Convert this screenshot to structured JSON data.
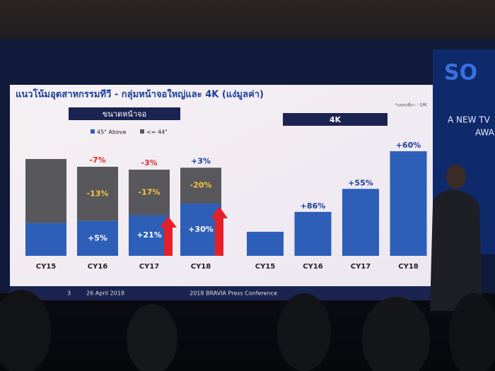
{
  "slide": {
    "title": "แนวโน้มอุตสาหกรรมทีวี - กลุ่มหน้าจอใหญ่และ 4K (แง่มูลค่า)",
    "source": "*แหล่งที่มา : GfK",
    "left_header": "ขนาดหน้าจอ",
    "right_header": "4K",
    "page": "3",
    "date": "26 April 2018",
    "event": "2018 BRAVIA Press Conference",
    "logo": "SO",
    "screen_text": [
      "A NEW TV",
      "AWA"
    ]
  },
  "chart_data": [
    {
      "type": "stacked_bar",
      "categories": [
        "CY15",
        "CY16",
        "CY17",
        "CY18"
      ],
      "series": [
        {
          "name": "45\" Above",
          "color": "#2d5fb8",
          "values": [
            34,
            36,
            42,
            54
          ],
          "label_color": "#ffffff",
          "labels": [
            null,
            {
              "value": 5,
              "label": "+5%"
            },
            {
              "value": 21,
              "label": "+21%"
            },
            {
              "value": 30,
              "label": "+30%"
            }
          ]
        },
        {
          "name": "<= 44\"",
          "color": "#58575c",
          "values": [
            66,
            56,
            47,
            37
          ],
          "label_color": "#f3c640",
          "labels": [
            null,
            {
              "value": -13,
              "label": "-13%"
            },
            {
              "value": -17,
              "label": "-17%"
            },
            {
              "value": -20,
              "label": "-20%"
            }
          ]
        }
      ],
      "total_labels": [
        null,
        {
          "value": -7,
          "label": "-7%"
        },
        {
          "value": -3,
          "label": "-3%"
        },
        {
          "value": 3,
          "label": "+3%"
        }
      ],
      "total_label_colors": [
        "#e02a2a",
        "#e02a2a",
        "#1a3f9a"
      ]
    },
    {
      "type": "bar",
      "categories": [
        "CY15",
        "CY16",
        "CY17",
        "CY18"
      ],
      "values": [
        23,
        42,
        64,
        100
      ],
      "color": "#2d5fb8",
      "label_color": "#1a3f9a",
      "labels": [
        null,
        {
          "value": 86,
          "label": "+86%"
        },
        {
          "value": 55,
          "label": "+55%"
        },
        {
          "value": 60,
          "label": "+60%"
        }
      ]
    }
  ]
}
